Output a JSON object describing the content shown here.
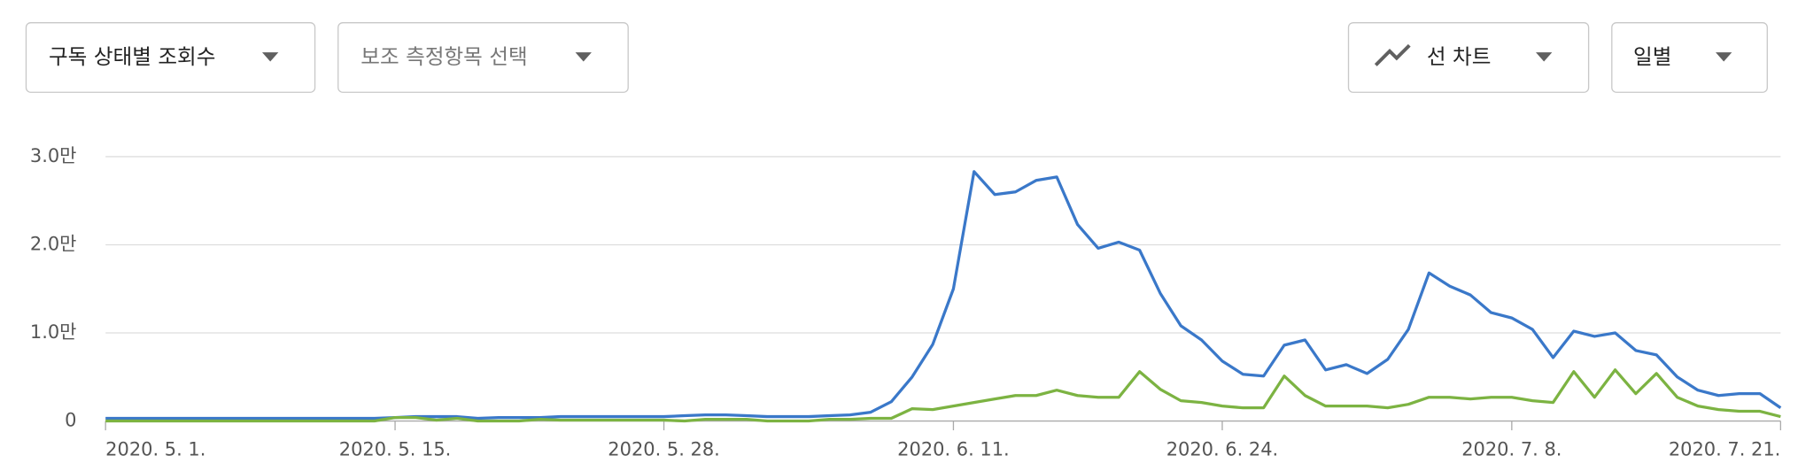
{
  "controls": {
    "metric": "구독 상태별 조회수",
    "secondary_metric": "보조 측정항목 선택",
    "chart_type": "선 차트",
    "period": "일별"
  },
  "chart_data": {
    "type": "line",
    "categories": [
      "2020. 5. 1.",
      null,
      null,
      null,
      null,
      null,
      null,
      null,
      null,
      null,
      null,
      null,
      null,
      null,
      "2020. 5. 15.",
      null,
      null,
      null,
      null,
      null,
      null,
      null,
      null,
      null,
      null,
      null,
      null,
      "2020. 5. 28.",
      null,
      null,
      null,
      null,
      null,
      null,
      null,
      null,
      null,
      null,
      null,
      null,
      null,
      "2020. 6. 11.",
      null,
      null,
      null,
      null,
      null,
      null,
      null,
      null,
      null,
      null,
      null,
      null,
      "2020. 6. 24.",
      null,
      null,
      null,
      null,
      null,
      null,
      null,
      null,
      null,
      null,
      null,
      null,
      null,
      "2020. 7. 8.",
      null,
      null,
      null,
      null,
      null,
      null,
      null,
      null,
      null,
      null,
      null,
      null,
      "2020. 7. 21."
    ],
    "series": [
      {
        "color": "#3a78c9",
        "values": [
          300,
          300,
          300,
          300,
          300,
          300,
          300,
          300,
          300,
          300,
          300,
          300,
          300,
          300,
          400,
          500,
          500,
          500,
          300,
          400,
          400,
          400,
          500,
          500,
          500,
          500,
          500,
          500,
          600,
          700,
          700,
          600,
          500,
          500,
          500,
          600,
          700,
          1000,
          2200,
          5000,
          8700,
          15000,
          28300,
          25700,
          26000,
          27300,
          27700,
          22300,
          19600,
          20300,
          19400,
          14500,
          10800,
          9200,
          6800,
          5300,
          5100,
          8600,
          9200,
          5800,
          6400,
          5400,
          7000,
          10400,
          16800,
          15300,
          14300,
          12300,
          11700,
          10400,
          7200,
          10200,
          9600,
          10000,
          8000,
          7500,
          5000,
          3500,
          2900,
          3100,
          3100,
          1500
        ]
      },
      {
        "color": "#7cb342",
        "values": [
          0,
          0,
          0,
          0,
          0,
          0,
          0,
          0,
          0,
          0,
          0,
          0,
          0,
          0,
          400,
          400,
          100,
          300,
          0,
          0,
          0,
          200,
          100,
          100,
          100,
          100,
          100,
          100,
          0,
          200,
          200,
          200,
          0,
          0,
          0,
          200,
          200,
          300,
          300,
          1400,
          1300,
          1700,
          2100,
          2500,
          2900,
          2900,
          3500,
          2900,
          2700,
          2700,
          5600,
          3600,
          2300,
          2100,
          1700,
          1500,
          1500,
          5100,
          2900,
          1700,
          1700,
          1700,
          1500,
          1900,
          2700,
          2700,
          2500,
          2700,
          2700,
          2300,
          2100,
          5600,
          2700,
          5800,
          3100,
          5400,
          2700,
          1700,
          1300,
          1100,
          1100,
          500
        ]
      }
    ],
    "ylim": [
      0,
      30000
    ],
    "yticks": [
      0,
      {
        "value": 10000,
        "label": "1.0만"
      },
      {
        "value": 20000,
        "label": "2.0만"
      },
      {
        "value": 30000,
        "label": "3.0만"
      }
    ],
    "grid": true
  }
}
